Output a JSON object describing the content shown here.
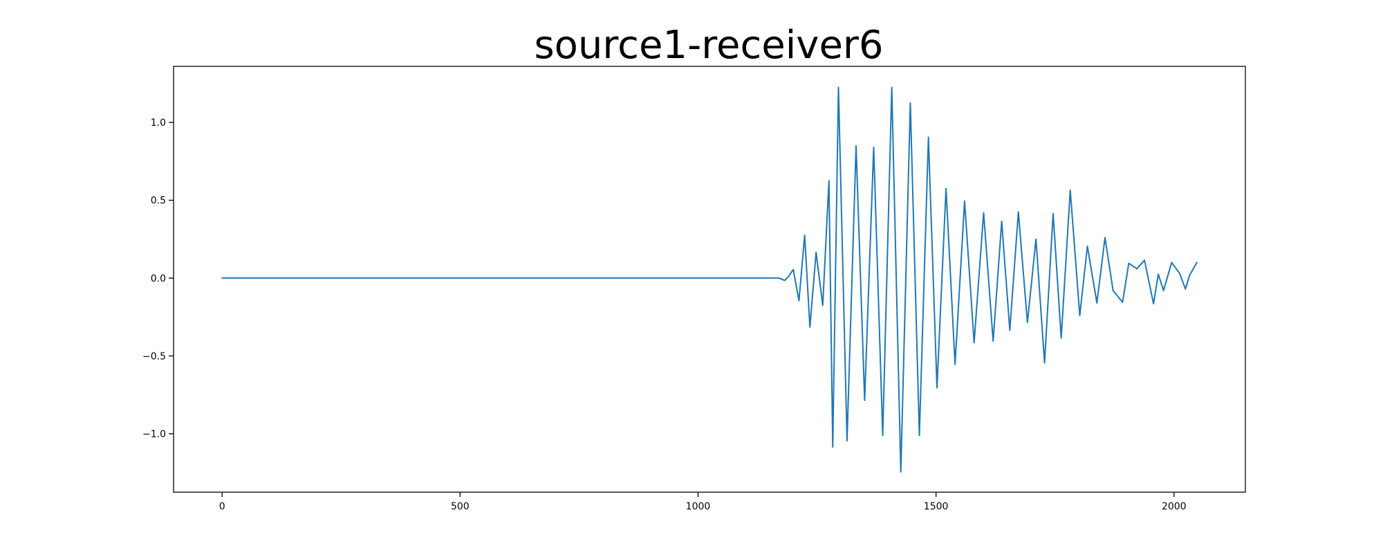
{
  "chart_data": {
    "type": "line",
    "title": "source1-receiver6",
    "xlabel": "",
    "ylabel": "",
    "xlim": [
      -102,
      2150
    ],
    "ylim": [
      -1.375,
      1.36
    ],
    "grid": false,
    "legend": "none",
    "colors": {
      "line": "#1f77b4",
      "axes": "#000000",
      "background": "#ffffff"
    },
    "x_ticks": [
      {
        "value": 0,
        "label": "0"
      },
      {
        "value": 500,
        "label": "500"
      },
      {
        "value": 1000,
        "label": "1000"
      },
      {
        "value": 1500,
        "label": "1500"
      },
      {
        "value": 2000,
        "label": "2000"
      }
    ],
    "y_ticks": [
      {
        "value": 1.0,
        "label": "1.0"
      },
      {
        "value": 0.5,
        "label": "0.5"
      },
      {
        "value": 0.0,
        "label": "0.0"
      },
      {
        "value": -0.5,
        "label": "−0.5"
      },
      {
        "value": -1.0,
        "label": "−1.0"
      }
    ],
    "series": [
      {
        "x": [
          0,
          200,
          400,
          600,
          800,
          1000,
          1120,
          1170,
          1182,
          1190,
          1200,
          1212,
          1224,
          1235,
          1248,
          1262,
          1275,
          1283,
          1295,
          1313,
          1332,
          1350,
          1369,
          1388,
          1407,
          1426,
          1446,
          1465,
          1484,
          1502,
          1521,
          1540,
          1560,
          1580,
          1600,
          1620,
          1638,
          1655,
          1673,
          1692,
          1710,
          1728,
          1746,
          1763,
          1782,
          1802,
          1818,
          1838,
          1855,
          1872,
          1892,
          1905,
          1922,
          1938,
          1957,
          1967,
          1978,
          1995,
          2012,
          2024,
          2033,
          2048
        ],
        "y": [
          0,
          0,
          0,
          0,
          0,
          0,
          0,
          0,
          -0.015,
          0.01,
          0.055,
          -0.145,
          0.275,
          -0.315,
          0.165,
          -0.175,
          0.625,
          -1.085,
          1.225,
          -1.045,
          0.85,
          -0.785,
          0.84,
          -1.01,
          1.225,
          -1.245,
          1.125,
          -1.01,
          0.905,
          -0.705,
          0.575,
          -0.555,
          0.495,
          -0.415,
          0.42,
          -0.405,
          0.365,
          -0.335,
          0.425,
          -0.285,
          0.25,
          -0.545,
          0.415,
          -0.385,
          0.565,
          -0.24,
          0.205,
          -0.16,
          0.26,
          -0.08,
          -0.155,
          0.095,
          0.06,
          0.115,
          -0.165,
          0.025,
          -0.08,
          0.1,
          0.03,
          -0.07,
          0.02,
          0.1
        ]
      }
    ]
  }
}
